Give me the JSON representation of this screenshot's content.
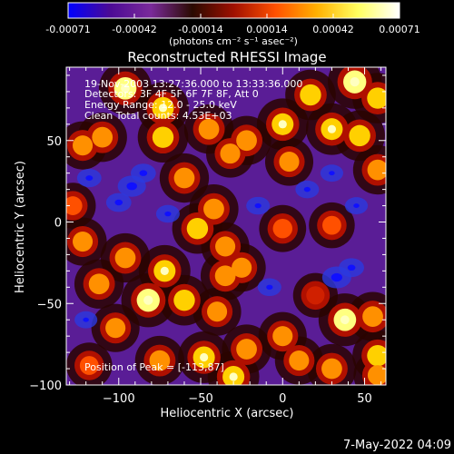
{
  "colorbar": {
    "ticks": [
      "-0.00071",
      "-0.00042",
      "-0.00014",
      "0.00014",
      "0.00042",
      "0.00071"
    ],
    "unit_label": "(photons cm⁻² s⁻¹ asec⁻²)",
    "colors": [
      "#0000ff",
      "#4b0a96",
      "#7a2a9a",
      "#2a0a00",
      "#a01000",
      "#ff5000",
      "#ffb000",
      "#ffff60",
      "#ffffff"
    ]
  },
  "plot": {
    "title": "Reconstructed RHESSI Image",
    "annotations": [
      "19-Nov-2003 13:27:36.000 to 13:33:36.000",
      "Detectors: 3F 4F 5F 6F 7F 8F, Att 0",
      "Energy Range: 12.0 - 25.0 keV",
      "Clean     Total counts: 4.53E+03"
    ],
    "peak_text": "Position of Peak = [-113,87]"
  },
  "chart_data": {
    "type": "heatmap",
    "title": "Reconstructed RHESSI Image",
    "xlabel": "Heliocentric X (arcsec)",
    "ylabel": "Heliocentric Y (arcsec)",
    "xlim": [
      -132,
      63
    ],
    "ylim": [
      -100,
      95
    ],
    "x_ticks": [
      -100,
      -50,
      0,
      50
    ],
    "x_tick_labels": [
      "−100",
      "−50",
      "0",
      "50"
    ],
    "y_ticks": [
      -100,
      -50,
      0,
      50
    ],
    "y_tick_labels": [
      "−100",
      "−50",
      "0",
      "50"
    ],
    "colorbar_range": [
      -0.00071,
      0.00071
    ],
    "peak_position": [
      -113,
      87
    ],
    "bright_sources": [
      {
        "x": 44,
        "y": 86,
        "level": 0.95
      },
      {
        "x": 58,
        "y": 76,
        "level": 0.8
      },
      {
        "x": 17,
        "y": 78,
        "level": 0.8
      },
      {
        "x": 0,
        "y": 60,
        "level": 0.85
      },
      {
        "x": 30,
        "y": 57,
        "level": 0.85
      },
      {
        "x": 47,
        "y": 53,
        "level": 0.8
      },
      {
        "x": 58,
        "y": 32,
        "level": 0.75
      },
      {
        "x": -96,
        "y": 82,
        "level": 0.9
      },
      {
        "x": -73,
        "y": 70,
        "level": 0.85
      },
      {
        "x": -73,
        "y": 52,
        "level": 0.8
      },
      {
        "x": -45,
        "y": 57,
        "level": 0.75
      },
      {
        "x": -110,
        "y": 52,
        "level": 0.75
      },
      {
        "x": -32,
        "y": 42,
        "level": 0.7
      },
      {
        "x": -22,
        "y": 50,
        "level": 0.75
      },
      {
        "x": -122,
        "y": 47,
        "level": 0.7
      },
      {
        "x": 4,
        "y": 37,
        "level": 0.7
      },
      {
        "x": -60,
        "y": 27,
        "level": 0.75
      },
      {
        "x": -42,
        "y": 8,
        "level": 0.75
      },
      {
        "x": -52,
        "y": -4,
        "level": 0.8
      },
      {
        "x": -35,
        "y": -15,
        "level": 0.7
      },
      {
        "x": -35,
        "y": -33,
        "level": 0.75
      },
      {
        "x": -25,
        "y": -28,
        "level": 0.7
      },
      {
        "x": 0,
        "y": -4,
        "level": 0.65
      },
      {
        "x": 30,
        "y": -2,
        "level": 0.6
      },
      {
        "x": -122,
        "y": -12,
        "level": 0.7
      },
      {
        "x": -96,
        "y": -22,
        "level": 0.75
      },
      {
        "x": -72,
        "y": -30,
        "level": 0.85
      },
      {
        "x": -82,
        "y": -48,
        "level": 0.95
      },
      {
        "x": -60,
        "y": -48,
        "level": 0.8
      },
      {
        "x": -112,
        "y": -38,
        "level": 0.75
      },
      {
        "x": -40,
        "y": -55,
        "level": 0.7
      },
      {
        "x": -102,
        "y": -65,
        "level": 0.7
      },
      {
        "x": -75,
        "y": -85,
        "level": 0.75
      },
      {
        "x": -48,
        "y": -83,
        "level": 0.85
      },
      {
        "x": -30,
        "y": -95,
        "level": 0.85
      },
      {
        "x": -22,
        "y": -78,
        "level": 0.75
      },
      {
        "x": 0,
        "y": -70,
        "level": 0.7
      },
      {
        "x": 10,
        "y": -85,
        "level": 0.7
      },
      {
        "x": 30,
        "y": -90,
        "level": 0.75
      },
      {
        "x": 38,
        "y": -60,
        "level": 0.9
      },
      {
        "x": 58,
        "y": -82,
        "level": 0.8
      },
      {
        "x": 55,
        "y": -58,
        "level": 0.75
      },
      {
        "x": 58,
        "y": -94,
        "level": 0.7
      },
      {
        "x": 20,
        "y": -45,
        "level": 0.55
      },
      {
        "x": -128,
        "y": 10,
        "level": 0.6
      },
      {
        "x": -118,
        "y": -88,
        "level": 0.6
      }
    ],
    "dark_regions": [
      {
        "x": -92,
        "y": 22,
        "level": 0.8
      },
      {
        "x": -100,
        "y": 12,
        "level": 0.6
      },
      {
        "x": -85,
        "y": 30,
        "level": 0.6
      },
      {
        "x": 33,
        "y": -34,
        "level": 0.85
      },
      {
        "x": 42,
        "y": -28,
        "level": 0.6
      },
      {
        "x": -118,
        "y": 27,
        "level": 0.55
      },
      {
        "x": -15,
        "y": 10,
        "level": 0.5
      },
      {
        "x": 15,
        "y": 20,
        "level": 0.5
      },
      {
        "x": -8,
        "y": -40,
        "level": 0.5
      },
      {
        "x": -70,
        "y": 5,
        "level": 0.5
      },
      {
        "x": 30,
        "y": 30,
        "level": 0.45
      },
      {
        "x": -120,
        "y": -60,
        "level": 0.45
      },
      {
        "x": 45,
        "y": 10,
        "level": 0.45
      }
    ]
  },
  "footer": {
    "timestamp": "7-May-2022 04:09"
  }
}
